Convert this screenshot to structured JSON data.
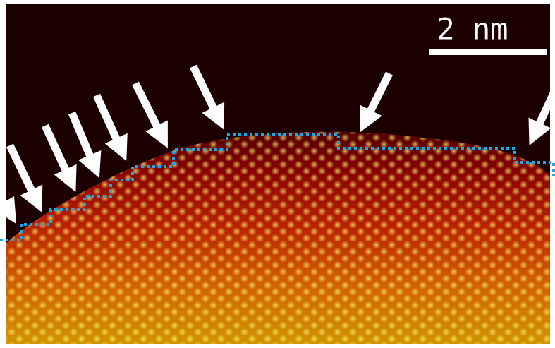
{
  "scale_bar": {
    "label": "2 nm"
  }
}
